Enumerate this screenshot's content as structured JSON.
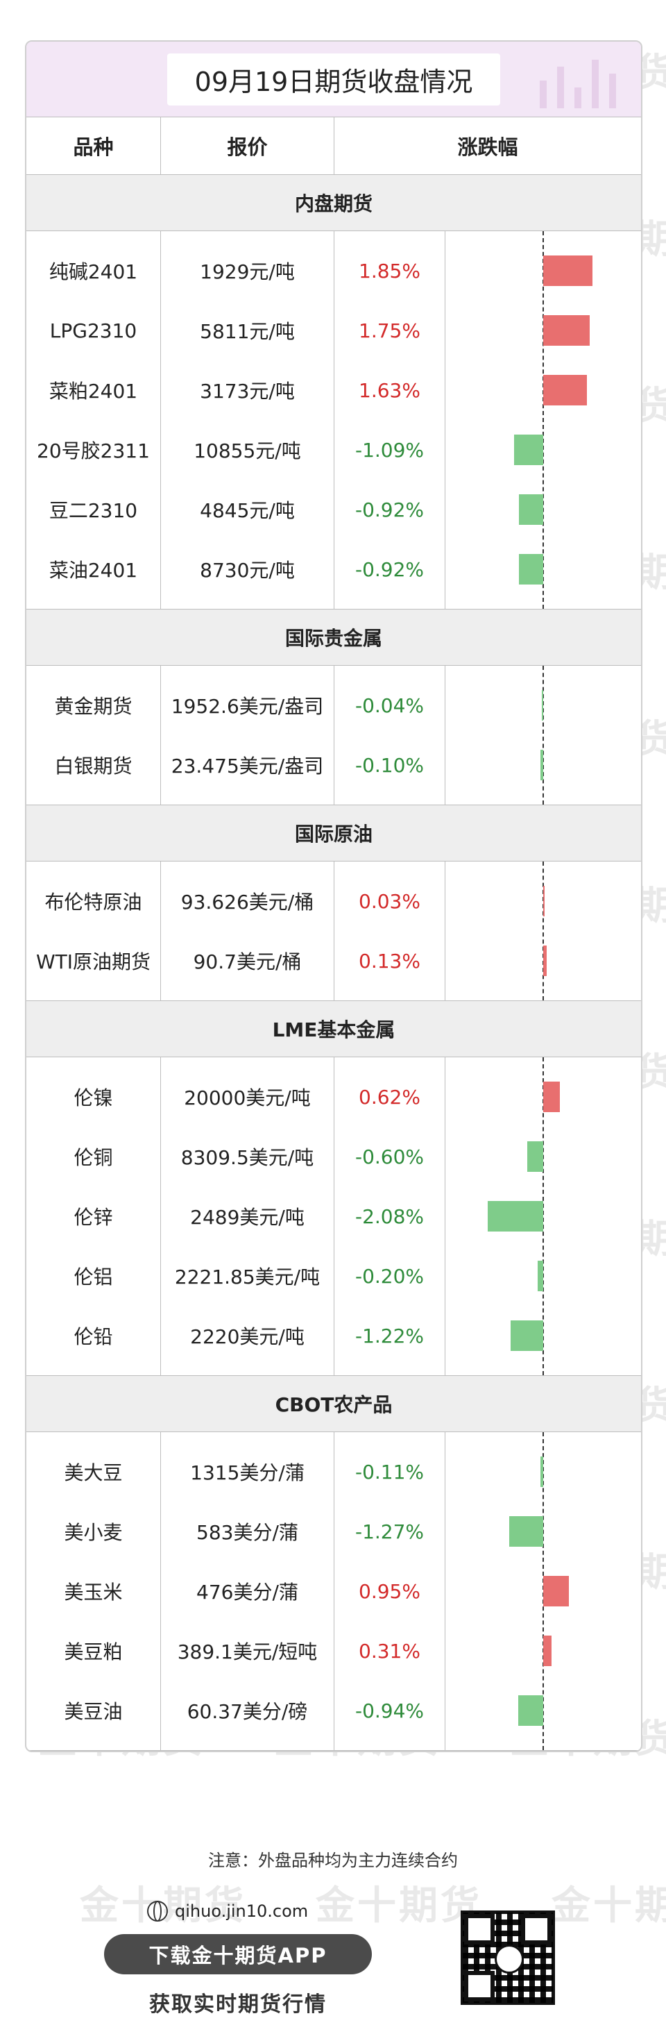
{
  "title": "09月19日期货收盘情况",
  "headers": {
    "variety": "品种",
    "price": "报价",
    "change": "涨跌幅"
  },
  "watermark": "金十期货",
  "colors": {
    "up": "#d32a2a",
    "down": "#2e8b3a",
    "up_bar": "#e86f6f",
    "down_bar": "#7fcc8a"
  },
  "sections": [
    {
      "title": "内盘期货",
      "rows": [
        {
          "name": "纯碱2401",
          "price": "1929元/吨",
          "change": "1.85%",
          "value": 1.85
        },
        {
          "name": "LPG2310",
          "price": "5811元/吨",
          "change": "1.75%",
          "value": 1.75
        },
        {
          "name": "菜粕2401",
          "price": "3173元/吨",
          "change": "1.63%",
          "value": 1.63
        },
        {
          "name": "20号胶2311",
          "price": "10855元/吨",
          "change": "-1.09%",
          "value": -1.09
        },
        {
          "name": "豆二2310",
          "price": "4845元/吨",
          "change": "-0.92%",
          "value": -0.92
        },
        {
          "name": "菜油2401",
          "price": "8730元/吨",
          "change": "-0.92%",
          "value": -0.92
        }
      ]
    },
    {
      "title": "国际贵金属",
      "rows": [
        {
          "name": "黄金期货",
          "price": "1952.6美元/盎司",
          "change": "-0.04%",
          "value": -0.04
        },
        {
          "name": "白银期货",
          "price": "23.475美元/盎司",
          "change": "-0.10%",
          "value": -0.1
        }
      ]
    },
    {
      "title": "国际原油",
      "rows": [
        {
          "name": "布伦特原油",
          "price": "93.626美元/桶",
          "change": "0.03%",
          "value": 0.03
        },
        {
          "name": "WTI原油期货",
          "price": "90.7美元/桶",
          "change": "0.13%",
          "value": 0.13
        }
      ]
    },
    {
      "title": "LME基本金属",
      "rows": [
        {
          "name": "伦镍",
          "price": "20000美元/吨",
          "change": "0.62%",
          "value": 0.62
        },
        {
          "name": "伦铜",
          "price": "8309.5美元/吨",
          "change": "-0.60%",
          "value": -0.6
        },
        {
          "name": "伦锌",
          "price": "2489美元/吨",
          "change": "-2.08%",
          "value": -2.08
        },
        {
          "name": "伦铝",
          "price": "2221.85美元/吨",
          "change": "-0.20%",
          "value": -0.2
        },
        {
          "name": "伦铅",
          "price": "2220美元/吨",
          "change": "-1.22%",
          "value": -1.22
        }
      ]
    },
    {
      "title": "CBOT农产品",
      "rows": [
        {
          "name": "美大豆",
          "price": "1315美分/蒲",
          "change": "-0.11%",
          "value": -0.11
        },
        {
          "name": "美小麦",
          "price": "583美分/蒲",
          "change": "-1.27%",
          "value": -1.27
        },
        {
          "name": "美玉米",
          "price": "476美分/蒲",
          "change": "0.95%",
          "value": 0.95
        },
        {
          "name": "美豆粕",
          "price": "389.1美元/短吨",
          "change": "0.31%",
          "value": 0.31
        },
        {
          "name": "美豆油",
          "price": "60.37美分/磅",
          "change": "-0.94%",
          "value": -0.94
        }
      ]
    }
  ],
  "note": "注意：外盘品种均为主力连续合约",
  "footer": {
    "url": "qihuo.jin10.com",
    "app_button": "下载金十期货APP",
    "subtitle": "获取实时期货行情"
  }
}
